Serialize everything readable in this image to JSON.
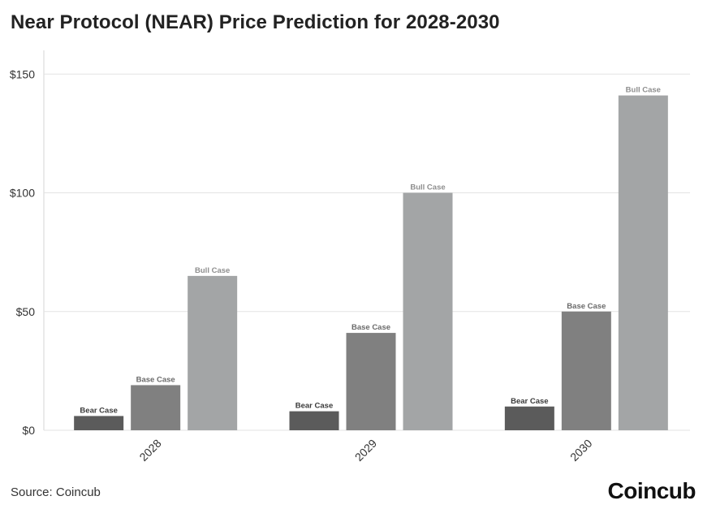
{
  "header": {
    "title": "Near Protocol (NEAR) Price Prediction for 2028-2030"
  },
  "footer": {
    "source": "Source: Coincub",
    "logo": "Coincub"
  },
  "chart_data": {
    "type": "bar",
    "title": "Near Protocol (NEAR) Price Prediction for 2028-2030",
    "categories": [
      "2028",
      "2029",
      "2030"
    ],
    "series": [
      {
        "name": "Bear Case",
        "values": [
          6,
          8,
          10
        ],
        "color": "#5b5b5b"
      },
      {
        "name": "Base Case",
        "values": [
          19,
          41,
          50
        ],
        "color": "#808080"
      },
      {
        "name": "Bull Case",
        "values": [
          65,
          100,
          141
        ],
        "color": "#a3a5a6"
      }
    ],
    "ylim": [
      0,
      160
    ],
    "yticks": [
      0,
      50,
      100,
      150
    ],
    "ytick_labels": [
      "$0",
      "$50",
      "$100",
      "$150"
    ],
    "xlabel": "",
    "ylabel": "",
    "grid": true,
    "bar_labels": true
  }
}
